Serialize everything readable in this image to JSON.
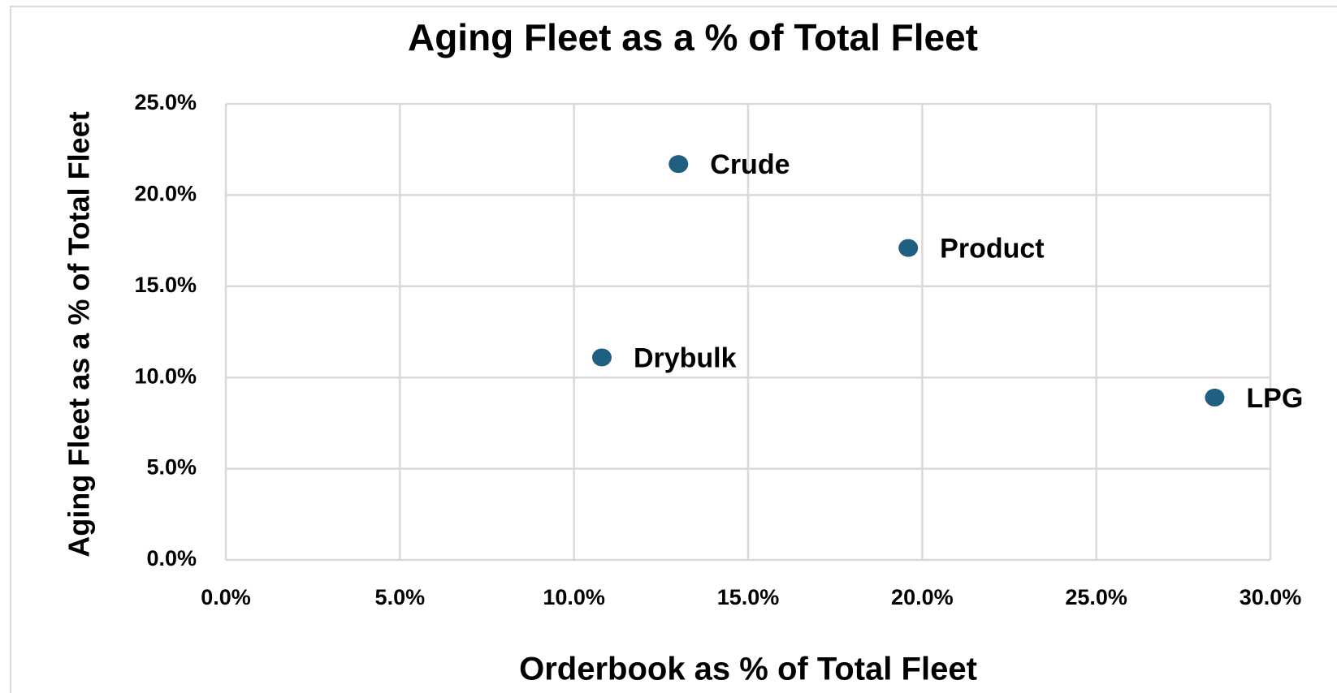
{
  "chart_data": {
    "type": "scatter",
    "title": "Aging Fleet as a % of Total Fleet",
    "x_label": "Orderbook as % of Total Fleet",
    "y_label": "Aging Fleet as a % of Total Fleet",
    "labels": [
      "Crude",
      "Product",
      "Drybulk",
      "LPG"
    ],
    "x": [
      13.0,
      19.6,
      10.8,
      28.4
    ],
    "values": [
      21.7,
      17.1,
      11.1,
      8.9
    ],
    "color": "#1f5f82",
    "xlim": [
      0,
      30
    ],
    "xticks": [
      {
        "value": 0,
        "label": "0.0%"
      },
      {
        "value": 5,
        "label": "5.0%"
      },
      {
        "value": 10,
        "label": "10.0%"
      },
      {
        "value": 15,
        "label": "15.0%"
      },
      {
        "value": 20,
        "label": "20.0%"
      },
      {
        "value": 25,
        "label": "25.0%"
      },
      {
        "value": 30,
        "label": "30.0%"
      }
    ],
    "ylim": [
      0,
      25
    ],
    "yticks": [
      {
        "value": 0,
        "label": "0.0%"
      },
      {
        "value": 5,
        "label": "5.0%"
      },
      {
        "value": 10,
        "label": "10.0%"
      },
      {
        "value": 15,
        "label": "15.0%"
      },
      {
        "value": 20,
        "label": "20.0%"
      },
      {
        "value": 25,
        "label": "25.0%"
      }
    ],
    "grid": true
  }
}
